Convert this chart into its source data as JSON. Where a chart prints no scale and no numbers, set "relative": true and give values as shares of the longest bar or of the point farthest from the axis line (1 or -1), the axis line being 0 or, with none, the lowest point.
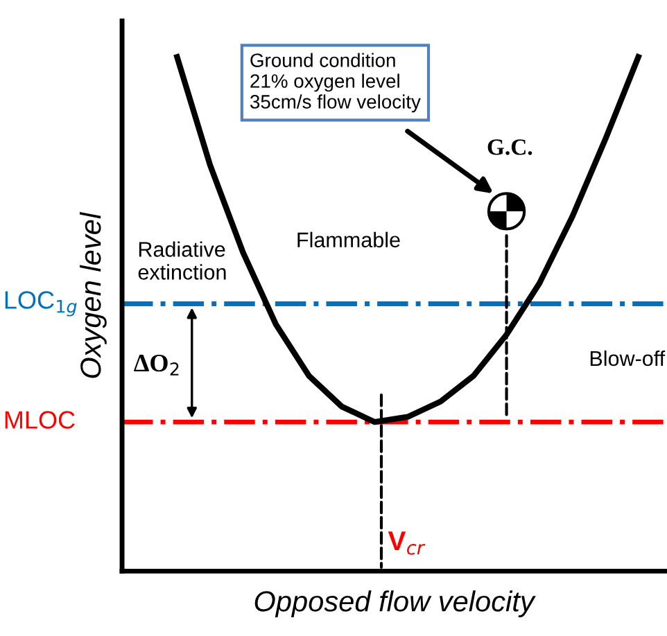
{
  "chart_data": {
    "type": "line",
    "relative": true,
    "xlabel": "Opposed flow velocity",
    "ylabel": "Oxygen level",
    "categories": [
      null,
      null,
      null,
      null,
      null,
      null,
      null,
      null,
      null,
      null,
      null,
      null,
      null,
      null,
      null
    ],
    "series": [
      {
        "color": "#000000",
        "values": [
          1.0,
          0.79,
          0.62,
          0.48,
          0.38,
          0.32,
          0.29,
          0.3,
          0.33,
          0.38,
          0.46,
          0.56,
          0.69,
          0.84,
          1.0
        ]
      }
    ],
    "marker": "none",
    "line_style": "solid",
    "legend": false,
    "ref_lines": [
      {
        "axis": "y",
        "value": 0.52,
        "label": "LOC$_{1g}$",
        "color": "#0070c0",
        "line_style": "dashdot"
      },
      {
        "axis": "y",
        "value": 0.29,
        "label": "MLOC",
        "color": "#ff0000",
        "line_style": "dashdot"
      }
    ],
    "annotations": [
      "Ground condition\n21% oxygen level\n35cm/s flow velocity",
      "G.C.",
      "Flammable",
      "Radiative\nextinction",
      "Blow-off",
      "ΔO$_{2}$",
      "V$_{cr}$"
    ]
  }
}
